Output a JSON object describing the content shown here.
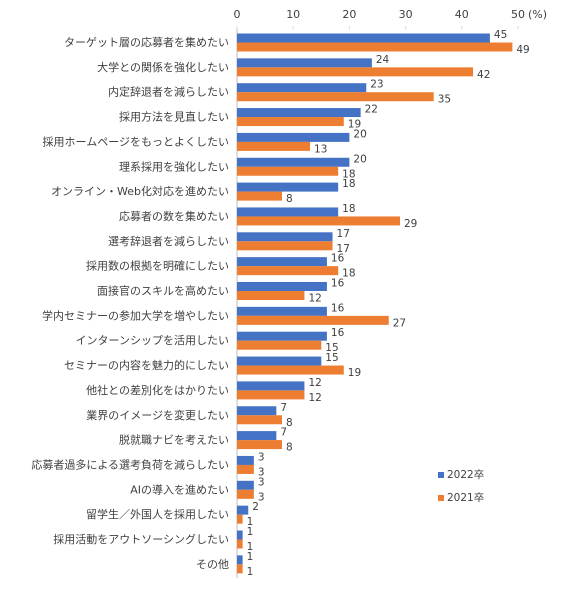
{
  "chart_data": {
    "type": "bar",
    "orientation": "horizontal",
    "categories": [
      "ターゲット層の応募者を集めたい",
      "大学との関係を強化したい",
      "内定辞退者を減らしたい",
      "採用方法を見直したい",
      "採用ホームページをもっとよくしたい",
      "理系採用を強化したい",
      "オンライン・Web化対応を進めたい",
      "応募者の数を集めたい",
      "選考辞退者を減らしたい",
      "採用数の根拠を明確にしたい",
      "面接官のスキルを高めたい",
      "学内セミナーの参加大学を増やしたい",
      "インターンシップを活用したい",
      "セミナーの内容を魅力的にしたい",
      "他社との差別化をはかりたい",
      "業界のイメージを変更したい",
      "脱就職ナビを考えたい",
      "応募者過多による選考負荷を減らしたい",
      "AIの導入を進めたい",
      "留学生／外国人を採用したい",
      "採用活動をアウトソーシングしたい",
      "その他"
    ],
    "series": [
      {
        "name": "2022卒",
        "color": "#4472c4",
        "values": [
          45,
          24,
          23,
          22,
          20,
          20,
          18,
          18,
          17,
          16,
          16,
          16,
          16,
          15,
          12,
          7,
          7,
          3,
          3,
          2,
          1,
          1
        ]
      },
      {
        "name": "2021卒",
        "color": "#ed7d31",
        "values": [
          49,
          42,
          35,
          19,
          13,
          18,
          8,
          29,
          17,
          18,
          12,
          27,
          15,
          19,
          12,
          8,
          8,
          3,
          3,
          1,
          1,
          1
        ]
      }
    ],
    "xlim": [
      0,
      50
    ],
    "xticks": [
      0,
      10,
      20,
      30,
      40,
      50
    ],
    "x_unit": "(%)",
    "grid": false,
    "legend": "bottom-right"
  }
}
